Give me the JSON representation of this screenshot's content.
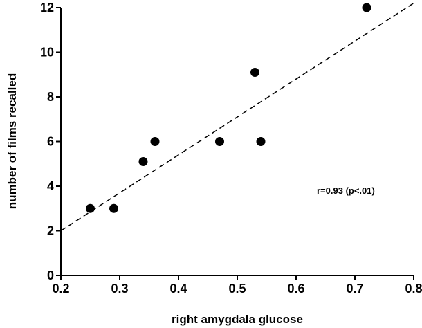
{
  "chart_data": {
    "type": "scatter",
    "title": "",
    "xlabel": "right  amygdala  glucose",
    "ylabel": "number  of  films  recalled",
    "xlim": [
      0.2,
      0.8
    ],
    "ylim": [
      0,
      12
    ],
    "xticks": [
      0.2,
      0.3,
      0.4,
      0.5,
      0.6,
      0.7,
      0.8
    ],
    "yticks": [
      0,
      2,
      4,
      6,
      8,
      10,
      12
    ],
    "xtick_labels": [
      "0.2",
      "0.3",
      "0.4",
      "0.5",
      "0.6",
      "0.7",
      "0.8"
    ],
    "ytick_labels": [
      "0",
      "2",
      "4",
      "6",
      "8",
      "10",
      "12"
    ],
    "points": [
      {
        "x": 0.25,
        "y": 3
      },
      {
        "x": 0.29,
        "y": 3
      },
      {
        "x": 0.34,
        "y": 5.1
      },
      {
        "x": 0.36,
        "y": 6
      },
      {
        "x": 0.47,
        "y": 6
      },
      {
        "x": 0.53,
        "y": 9.1
      },
      {
        "x": 0.54,
        "y": 6
      },
      {
        "x": 0.72,
        "y": 12
      }
    ],
    "fit_line": {
      "style": "dashed",
      "from": {
        "x": 0.2,
        "y": 2.0
      },
      "to": {
        "x": 0.8,
        "y": 12.2
      }
    },
    "annotation": "r=0.93 (p<.01)",
    "grid": false,
    "legend": "none",
    "marker_color": "#000000"
  }
}
